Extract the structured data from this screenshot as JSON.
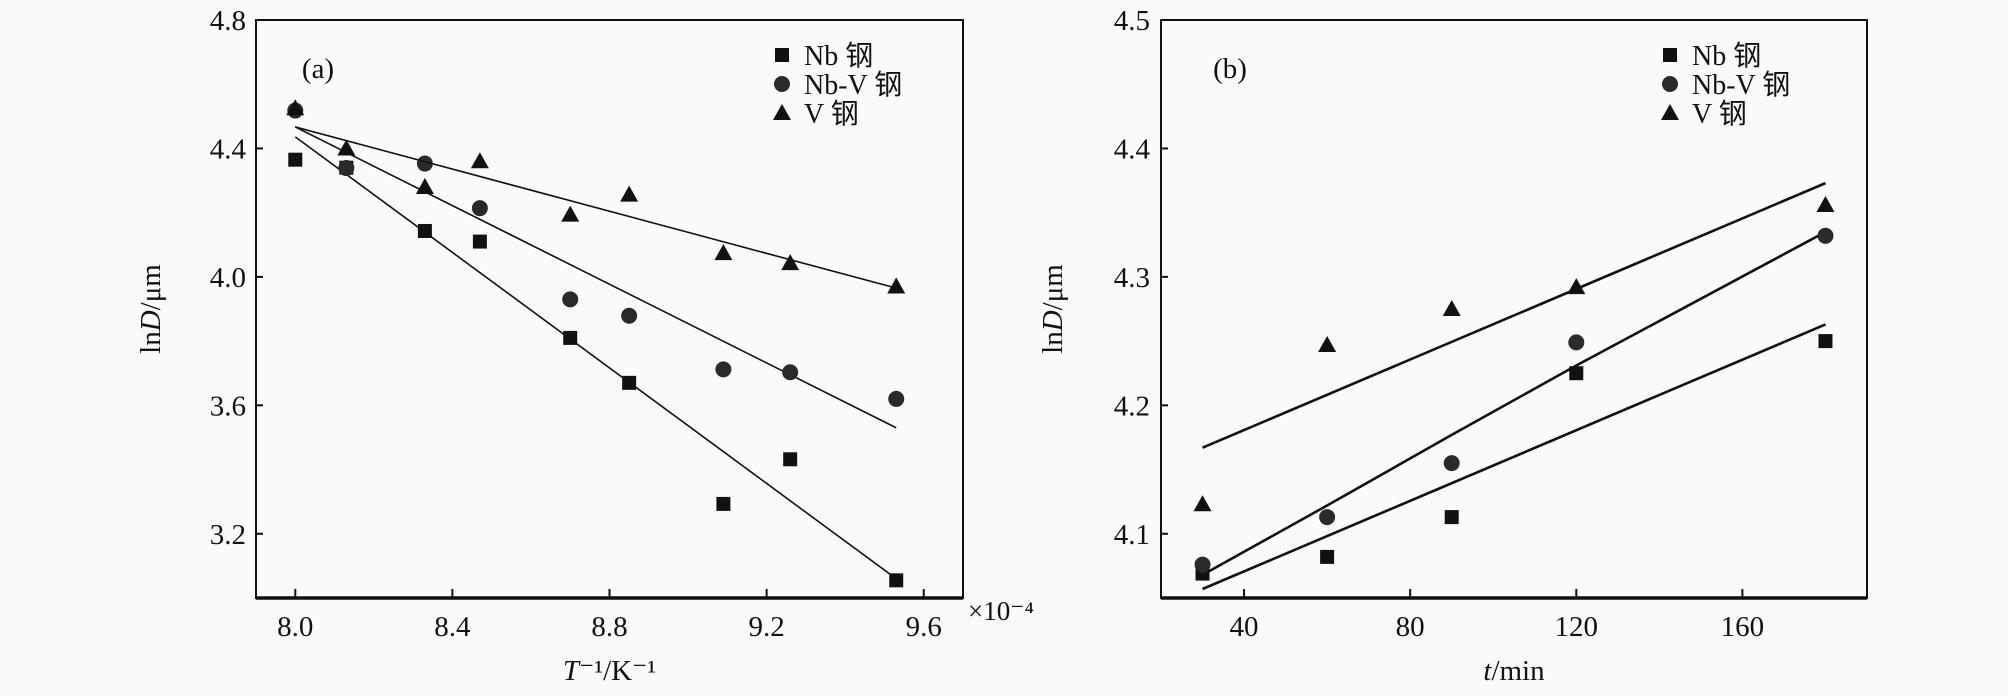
{
  "chart_data": [
    {
      "type": "scatter",
      "panel_label": "(a)",
      "xlabel": "T⁻¹/K⁻¹",
      "xlabel_parts": {
        "var": "T",
        "rest": "⁻¹/K⁻¹"
      },
      "x_multiplier": "×10⁻⁴",
      "ylabel_parts": {
        "pre": "ln",
        "var": "D",
        "rest": "/μm"
      },
      "xlim": [
        7.9,
        9.7
      ],
      "ylim": [
        3.0,
        4.8
      ],
      "xticks": [
        "8.0",
        "8.4",
        "8.8",
        "9.2",
        "9.6"
      ],
      "yticks": [
        "3.2",
        "3.6",
        "4.0",
        "4.4",
        "4.8"
      ],
      "legend_position": "top-right",
      "grid": false,
      "series": [
        {
          "name": "Nb 钢",
          "marker": "square",
          "x": [
            8.0,
            8.13,
            8.33,
            8.47,
            8.7,
            8.85,
            9.09,
            9.26,
            9.53
          ],
          "y": [
            4.365,
            4.34,
            4.143,
            4.11,
            3.81,
            3.67,
            3.293,
            3.432,
            3.055
          ],
          "fit": [
            [
              8.0,
              4.436
            ],
            [
              9.53,
              3.06
            ]
          ]
        },
        {
          "name": "Nb-V 钢",
          "marker": "circle",
          "x": [
            8.0,
            8.13,
            8.33,
            8.47,
            8.7,
            8.85,
            9.09,
            9.26,
            9.53
          ],
          "y": [
            4.518,
            4.339,
            4.353,
            4.214,
            3.93,
            3.879,
            3.712,
            3.703,
            3.62
          ],
          "fit": [
            [
              8.0,
              4.467
            ],
            [
              9.53,
              3.53
            ]
          ]
        },
        {
          "name": "V 钢",
          "marker": "triangle",
          "x": [
            8.0,
            8.13,
            8.33,
            8.47,
            8.7,
            8.85,
            9.09,
            9.26,
            9.53
          ],
          "y": [
            4.525,
            4.4,
            4.28,
            4.36,
            4.194,
            4.256,
            4.074,
            4.043,
            3.97
          ],
          "fit": [
            [
              8.0,
              4.467
            ],
            [
              9.53,
              3.965
            ]
          ]
        }
      ]
    },
    {
      "type": "scatter",
      "panel_label": "(b)",
      "xlabel": "t/min",
      "xlabel_parts": {
        "var": "t",
        "rest": "/min"
      },
      "ylabel_parts": {
        "pre": "ln",
        "var": "D",
        "rest": "/μm"
      },
      "xlim": [
        20,
        190
      ],
      "ylim": [
        4.05,
        4.5
      ],
      "xticks": [
        "40",
        "80",
        "120",
        "160"
      ],
      "yticks": [
        "4.1",
        "4.2",
        "4.3",
        "4.4",
        "4.5"
      ],
      "legend_position": "top-right",
      "grid": false,
      "series": [
        {
          "name": "Nb 钢",
          "marker": "square",
          "x": [
            30,
            60,
            90,
            120,
            180
          ],
          "y": [
            4.069,
            4.082,
            4.113,
            4.225,
            4.25
          ],
          "fit": [
            [
              30,
              4.057
            ],
            [
              180,
              4.263
            ]
          ]
        },
        {
          "name": "Nb-V 钢",
          "marker": "circle",
          "x": [
            30,
            60,
            90,
            120,
            180
          ],
          "y": [
            4.076,
            4.113,
            4.155,
            4.249,
            4.332
          ],
          "fit": [
            [
              30,
              4.068
            ],
            [
              60,
              4.122
            ],
            [
              90,
              4.177
            ],
            [
              120,
              4.231
            ],
            [
              180,
              4.335
            ]
          ]
        },
        {
          "name": "V 钢",
          "marker": "triangle",
          "x": [
            30,
            60,
            90,
            120,
            180
          ],
          "y": [
            4.123,
            4.247,
            4.275,
            4.292,
            4.356
          ],
          "fit": [
            [
              30,
              4.167
            ],
            [
              180,
              4.373
            ]
          ]
        }
      ]
    }
  ],
  "colors": {
    "ink": "#111111",
    "background": "#fafafa"
  }
}
